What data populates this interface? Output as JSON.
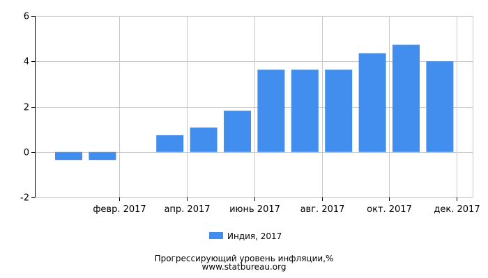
{
  "chart_data": {
    "type": "bar",
    "title": "Прогрессирующий уровень инфляции,%",
    "source": "www.statbureau.org",
    "xlabel": "",
    "ylabel": "",
    "ylim": [
      -2,
      6
    ],
    "y_ticks": [
      "-2",
      "0",
      "2",
      "4",
      "6"
    ],
    "y_tick_values": [
      -2,
      0,
      2,
      4,
      6
    ],
    "x_tick_labels": [
      "февр. 2017",
      "апр. 2017",
      "июнь 2017",
      "авг. 2017",
      "окт. 2017",
      "дек. 2017"
    ],
    "x_tick_indices": [
      1,
      3,
      5,
      7,
      9,
      11
    ],
    "grid": true,
    "legend_position": "bottom",
    "series": [
      {
        "name": "Индия, 2017",
        "color": "#428eee",
        "values": [
          -0.35,
          -0.35,
          0,
          0.75,
          1.08,
          1.82,
          3.63,
          3.63,
          3.63,
          4.36,
          4.73,
          4.0
        ]
      }
    ]
  }
}
